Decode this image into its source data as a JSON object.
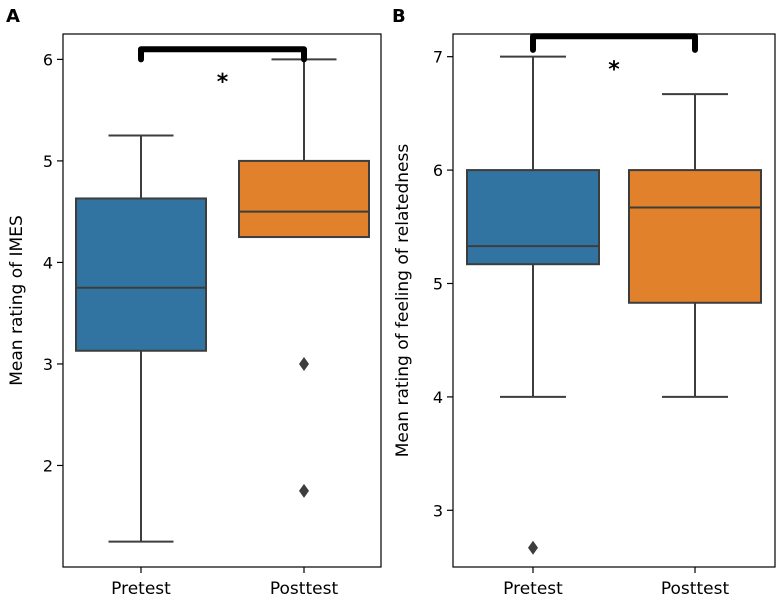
{
  "chart_data": [
    {
      "panel": "A",
      "type": "box",
      "ylabel": "Mean rating of IMES",
      "ylim": [
        1.0,
        6.25
      ],
      "yticks": [
        2,
        3,
        4,
        5,
        6
      ],
      "categories": [
        "Pretest",
        "Posttest"
      ],
      "colors": [
        "#3274a1",
        "#e1812c"
      ],
      "boxes": [
        {
          "name": "Pretest",
          "whisker_low": 1.25,
          "q1": 3.13,
          "median": 3.75,
          "q3": 4.63,
          "whisker_high": 5.25,
          "outliers": []
        },
        {
          "name": "Posttest",
          "whisker_low": 4.25,
          "q1": 4.25,
          "median": 4.5,
          "q3": 5.0,
          "whisker_high": 6.0,
          "outliers": [
            3.0,
            1.75
          ]
        }
      ],
      "significance": {
        "label": "*",
        "bracket_y": 6.1,
        "drop": 0.1
      }
    },
    {
      "panel": "B",
      "type": "box",
      "ylabel": "Mean rating of feeling of relatedness",
      "ylim": [
        2.5,
        7.2
      ],
      "yticks": [
        3,
        4,
        5,
        6,
        7
      ],
      "categories": [
        "Pretest",
        "Posttest"
      ],
      "colors": [
        "#3274a1",
        "#e1812c"
      ],
      "boxes": [
        {
          "name": "Pretest",
          "whisker_low": 4.0,
          "q1": 5.17,
          "median": 5.33,
          "q3": 6.0,
          "whisker_high": 7.0,
          "outliers": [
            2.67
          ]
        },
        {
          "name": "Posttest",
          "whisker_low": 4.0,
          "q1": 4.83,
          "median": 5.67,
          "q3": 6.0,
          "whisker_high": 6.67,
          "outliers": []
        }
      ],
      "significance": {
        "label": "*",
        "bracket_y": 7.18,
        "drop": 0.12
      }
    }
  ]
}
